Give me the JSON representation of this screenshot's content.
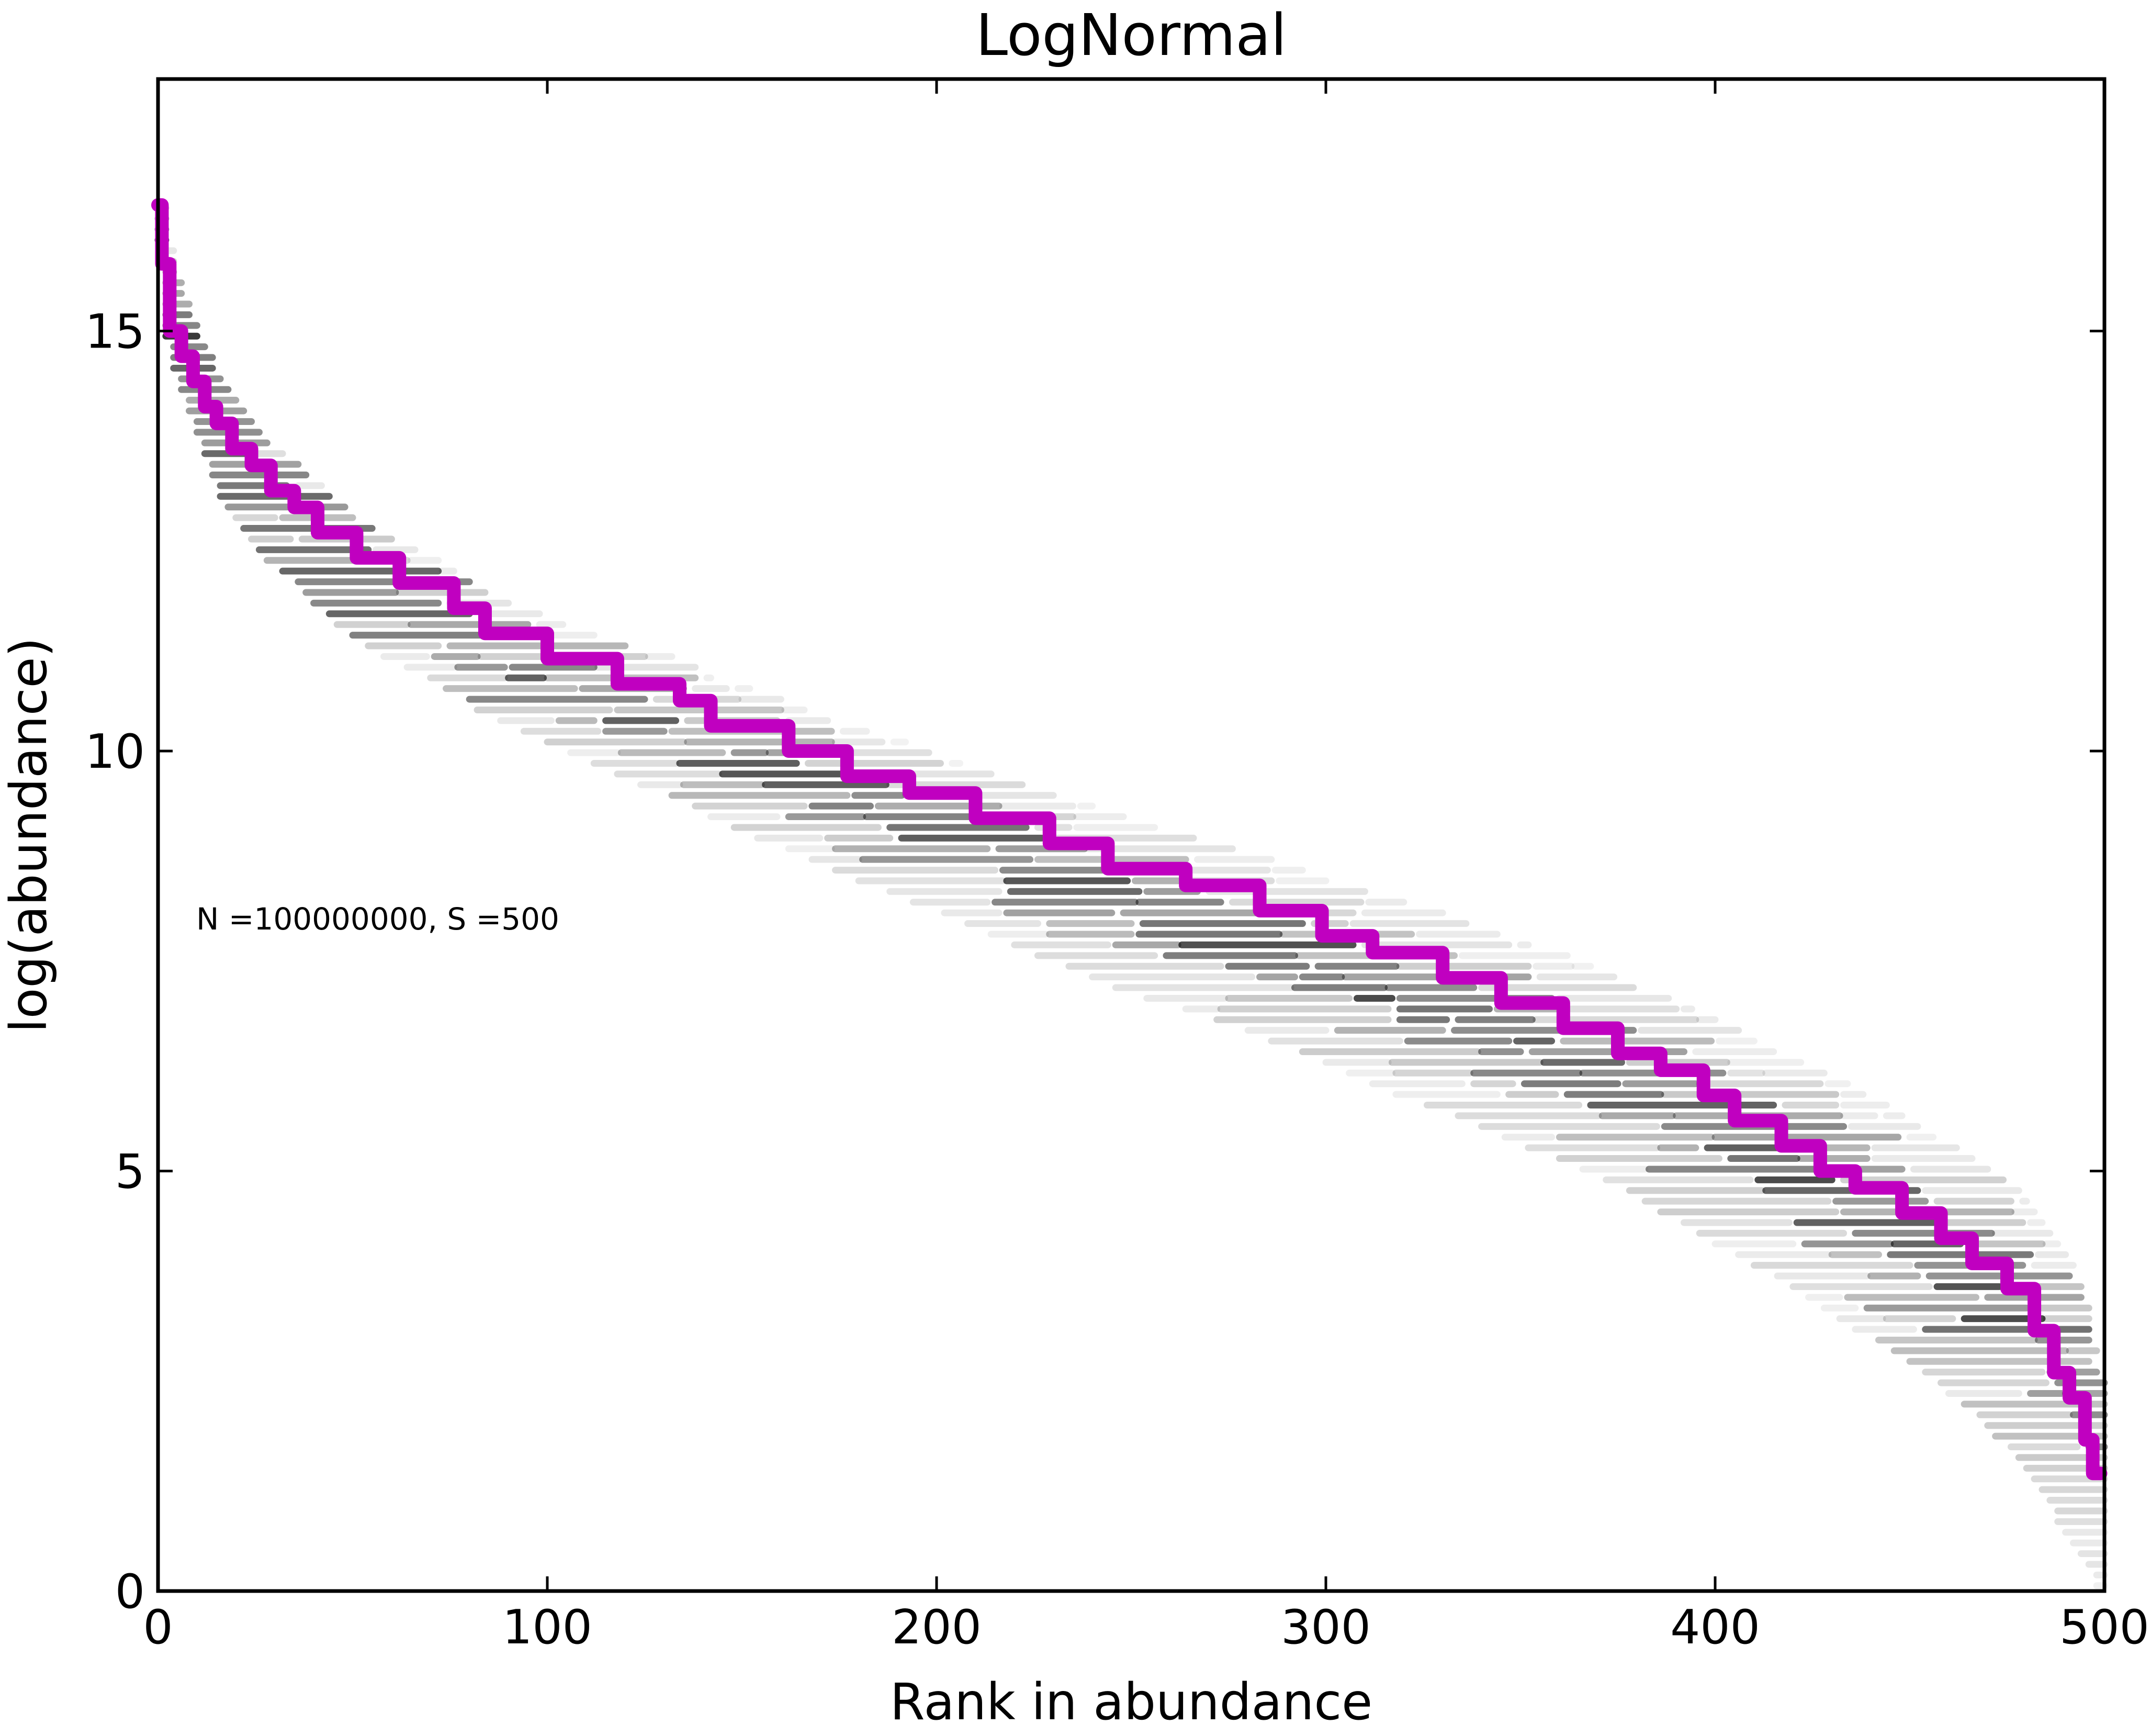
{
  "chart_data": {
    "type": "scatter",
    "title": "LogNormal",
    "xlabel": "Rank in abundance",
    "ylabel": "log(abundance)",
    "annotation": "N =100000000, S =500",
    "xlim": [
      0,
      500
    ],
    "ylim": [
      0,
      18
    ],
    "xticks": [
      0,
      100,
      200,
      300,
      400,
      500
    ],
    "yticks": [
      0,
      5,
      10,
      15
    ],
    "grid": false,
    "legend": "none",
    "colors": {
      "line": "#c000c0",
      "density": "#000000"
    },
    "series": [
      {
        "kind": "step-line",
        "x": [
          0,
          1,
          3,
          6,
          9,
          12,
          15,
          19,
          24,
          29,
          35,
          41,
          51,
          62,
          76,
          84,
          100,
          118,
          134,
          142,
          162,
          177,
          193,
          210,
          229,
          244,
          264,
          283,
          299,
          312,
          330,
          345,
          361,
          375,
          386,
          397,
          405,
          417,
          427,
          436,
          448,
          458,
          466,
          475,
          482,
          487,
          491,
          495,
          497,
          499
        ],
        "y": [
          16.5,
          15.8,
          15.0,
          14.7,
          14.4,
          14.1,
          13.9,
          13.6,
          13.4,
          13.1,
          12.9,
          12.6,
          12.3,
          12.0,
          11.7,
          11.4,
          11.1,
          10.8,
          10.6,
          10.3,
          10.0,
          9.7,
          9.5,
          9.2,
          8.9,
          8.6,
          8.4,
          8.1,
          7.8,
          7.6,
          7.3,
          7.0,
          6.7,
          6.4,
          6.2,
          5.9,
          5.6,
          5.3,
          5.0,
          4.8,
          4.5,
          4.2,
          3.9,
          3.6,
          3.1,
          2.6,
          2.3,
          1.8,
          1.4,
          1.4
        ]
      },
      {
        "kind": "density-band",
        "x": [
          0,
          1,
          3,
          6,
          9,
          12,
          15,
          19,
          24,
          29,
          35,
          41,
          51,
          62,
          76,
          84,
          100,
          118,
          134,
          142,
          162,
          177,
          193,
          210,
          229,
          244,
          264,
          283,
          299,
          312,
          330,
          345,
          361,
          375,
          386,
          397,
          405,
          417,
          427,
          436,
          448,
          458,
          466,
          475,
          482,
          487,
          491,
          495,
          497,
          499
        ],
        "y_low": [
          16.0,
          15.2,
          14.6,
          14.2,
          13.8,
          13.5,
          13.1,
          12.8,
          12.5,
          12.2,
          12.0,
          11.7,
          11.3,
          11.0,
          10.7,
          10.4,
          10.1,
          9.7,
          9.4,
          9.2,
          8.8,
          8.5,
          8.2,
          7.9,
          7.5,
          7.2,
          6.9,
          6.6,
          6.3,
          6.0,
          5.7,
          5.4,
          5.1,
          4.8,
          4.5,
          4.2,
          4.0,
          3.7,
          3.4,
          3.1,
          2.8,
          2.4,
          2.1,
          1.7,
          1.3,
          0.9,
          0.6,
          0.3,
          0.1,
          0.0
        ],
        "y_high": [
          17.6,
          16.8,
          16.2,
          15.7,
          15.3,
          14.9,
          14.6,
          14.3,
          14.0,
          13.7,
          13.5,
          13.2,
          12.8,
          12.5,
          12.2,
          11.9,
          11.6,
          11.3,
          11.1,
          10.9,
          10.6,
          10.3,
          10.1,
          9.8,
          9.5,
          9.3,
          9.0,
          8.8,
          8.5,
          8.3,
          8.1,
          7.8,
          7.6,
          7.3,
          7.1,
          6.9,
          6.7,
          6.4,
          6.2,
          6.0,
          5.7,
          5.4,
          5.2,
          4.9,
          4.6,
          4.3,
          4.0,
          3.6,
          3.2,
          2.6
        ]
      }
    ]
  }
}
